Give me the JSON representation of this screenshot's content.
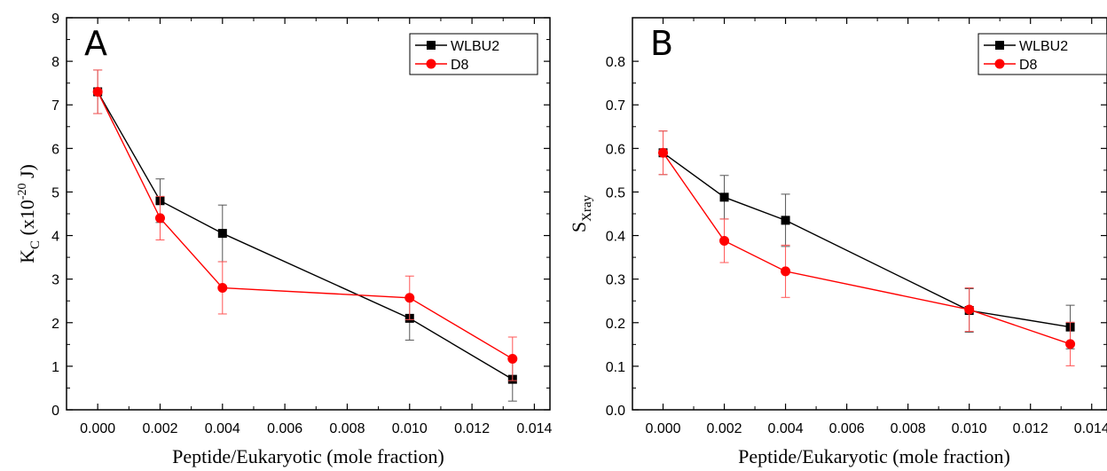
{
  "chart_data": [
    {
      "type": "line",
      "panel_label": "A",
      "xlabel": "Peptide/Eukaryotic (mole fraction)",
      "ylabel": {
        "base": "K",
        "sub": "C",
        "rest_pre": " (x10",
        "sup": "-20",
        "rest_post": " J)"
      },
      "xlim": [
        -0.001,
        0.0145
      ],
      "ylim": [
        0,
        9
      ],
      "xticks": [
        0,
        0.002,
        0.004,
        0.006,
        0.008,
        0.01,
        0.012,
        0.014
      ],
      "xtick_labels": [
        "0.000",
        "0.002",
        "0.004",
        "0.006",
        "0.008",
        "0.010",
        "0.012",
        "0.014"
      ],
      "yticks": [
        0,
        1,
        2,
        3,
        4,
        5,
        6,
        7,
        8,
        9
      ],
      "ytick_labels": [
        "0",
        "1",
        "2",
        "3",
        "4",
        "5",
        "6",
        "7",
        "8",
        "9"
      ],
      "legend_position": "top-right",
      "grid": false,
      "series": [
        {
          "name": "WLBU2",
          "color": "#000000",
          "marker": "square",
          "x": [
            0,
            0.002,
            0.004,
            0.01,
            0.0133
          ],
          "y": [
            7.3,
            4.8,
            4.05,
            2.1,
            0.7
          ],
          "err": [
            0.5,
            0.5,
            0.65,
            0.5,
            0.5
          ]
        },
        {
          "name": "D8",
          "color": "#ff0000",
          "marker": "circle",
          "x": [
            0,
            0.002,
            0.004,
            0.01,
            0.0133
          ],
          "y": [
            7.3,
            4.4,
            2.8,
            2.57,
            1.17
          ],
          "err": [
            0.5,
            0.5,
            0.6,
            0.5,
            0.5
          ]
        }
      ]
    },
    {
      "type": "line",
      "panel_label": "B",
      "xlabel": "Peptide/Eukaryotic (mole fraction)",
      "ylabel": {
        "base": "S",
        "sub": "Xray"
      },
      "xlim": [
        -0.001,
        0.0145
      ],
      "ylim": [
        0,
        0.9
      ],
      "xticks": [
        0,
        0.002,
        0.004,
        0.006,
        0.008,
        0.01,
        0.012,
        0.014
      ],
      "xtick_labels": [
        "0.000",
        "0.002",
        "0.004",
        "0.006",
        "0.008",
        "0.010",
        "0.012",
        "0.014"
      ],
      "yticks": [
        0,
        0.1,
        0.2,
        0.3,
        0.4,
        0.5,
        0.6,
        0.7,
        0.8
      ],
      "ytick_labels": [
        "0.0",
        "0.1",
        "0.2",
        "0.3",
        "0.4",
        "0.5",
        "0.6",
        "0.7",
        "0.8"
      ],
      "legend_position": "top-right",
      "grid": false,
      "series": [
        {
          "name": "WLBU2",
          "color": "#000000",
          "marker": "square",
          "x": [
            0,
            0.002,
            0.004,
            0.01,
            0.0133
          ],
          "y": [
            0.59,
            0.488,
            0.435,
            0.228,
            0.19
          ],
          "err": [
            0.05,
            0.05,
            0.06,
            0.05,
            0.05
          ]
        },
        {
          "name": "D8",
          "color": "#ff0000",
          "marker": "circle",
          "x": [
            0,
            0.002,
            0.004,
            0.01,
            0.0133
          ],
          "y": [
            0.59,
            0.388,
            0.318,
            0.23,
            0.151
          ],
          "err": [
            0.05,
            0.05,
            0.06,
            0.05,
            0.05
          ]
        }
      ]
    }
  ]
}
